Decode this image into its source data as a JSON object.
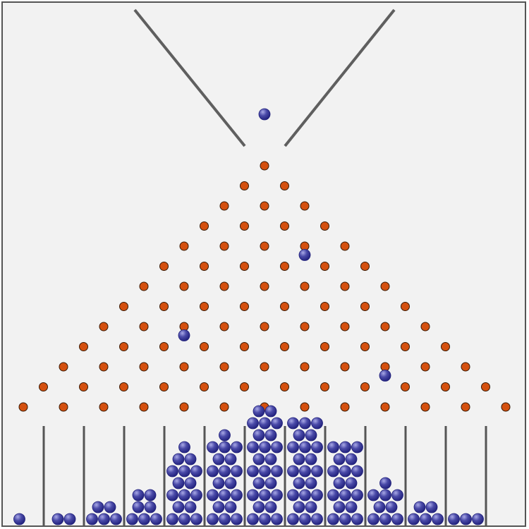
{
  "board": {
    "background_color": "#f2f2f2",
    "frame_color": "#555555",
    "funnel_color": "#5f5f5f",
    "divider_color": "#555555",
    "peg_color": "#d4500f",
    "peg_outline": "#3a1a05",
    "ball_color": "#1f1f7a",
    "ball_highlight": "#a9a9e6",
    "peg_rows": 13,
    "bins": 13,
    "bin_counts": [
      1,
      2,
      5,
      7,
      16,
      19,
      25,
      23,
      18,
      9,
      5,
      3,
      0
    ],
    "falling_balls": [
      {
        "row": -2,
        "offset": 0
      },
      {
        "row": 5,
        "offset": 2
      },
      {
        "row": 9,
        "offset": -4
      },
      {
        "row": 11,
        "offset": 6
      }
    ]
  }
}
